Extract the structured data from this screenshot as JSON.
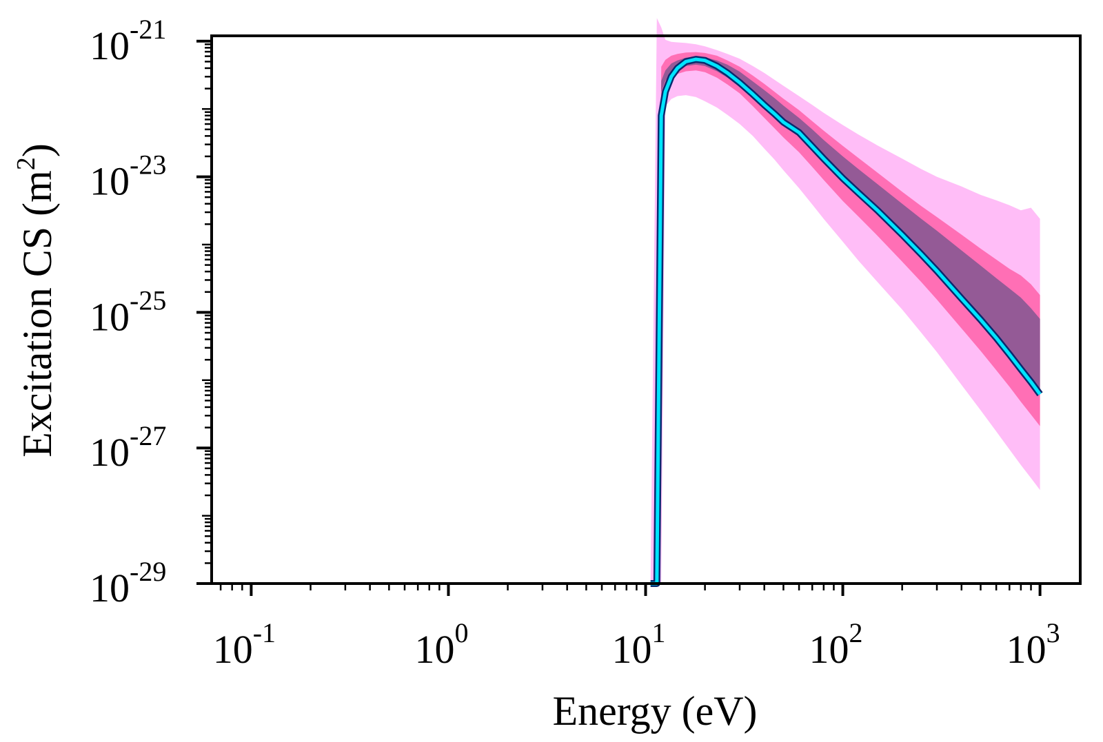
{
  "chart_data": {
    "type": "area",
    "title": "",
    "xlabel": "Energy (eV)",
    "ylabel_main": "Excitation CS (m",
    "ylabel_sup": "2",
    "ylabel_close": ")",
    "xscale": "log",
    "yscale": "log",
    "xlim": [
      0.063,
      1600
    ],
    "ylim": [
      1e-29,
      1.2e-21
    ],
    "grid": false,
    "legend": "none",
    "x_ticks": [
      {
        "value": 0.1,
        "base": "10",
        "exp": "-1"
      },
      {
        "value": 1,
        "base": "10",
        "exp": "0"
      },
      {
        "value": 10,
        "base": "10",
        "exp": "1"
      },
      {
        "value": 100,
        "base": "10",
        "exp": "2"
      },
      {
        "value": 1000,
        "base": "10",
        "exp": "3"
      }
    ],
    "y_ticks": [
      {
        "value": 1e-21,
        "base": "10",
        "exp": "-21"
      },
      {
        "value": 1e-23,
        "base": "10",
        "exp": "-23"
      },
      {
        "value": 1e-25,
        "base": "10",
        "exp": "-25"
      },
      {
        "value": 1e-27,
        "base": "10",
        "exp": "-27"
      },
      {
        "value": 1e-29,
        "base": "10",
        "exp": "-29"
      }
    ],
    "x": [
      10.6,
      11.4,
      12.0,
      12.6,
      13.5,
      14.5,
      16,
      18,
      20,
      23,
      26,
      30,
      35,
      40,
      45,
      50,
      60,
      70,
      80,
      100,
      120,
      150,
      200,
      250,
      300,
      400,
      500,
      600,
      700,
      800,
      900,
      1000
    ],
    "series": [
      {
        "name": "mean",
        "color": "#00e5ff",
        "edge": "#0a2a6e",
        "values": [
          1e-29,
          1e-29,
          8e-23,
          1.8e-22,
          3e-22,
          4e-22,
          5e-22,
          5.4e-22,
          5.2e-22,
          4.3e-22,
          3.4e-22,
          2.45e-22,
          1.65e-22,
          1.15e-22,
          8.5e-23,
          6.4e-23,
          4.5e-23,
          2.8e-23,
          1.85e-23,
          9.5e-24,
          5.8e-24,
          3.2e-24,
          1.4e-24,
          7.2e-25,
          4.1e-25,
          1.6e-25,
          7.8e-26,
          4.2e-26,
          2.4e-26,
          1.45e-26,
          9.4e-27,
          6.2e-27
        ]
      }
    ],
    "bands": [
      {
        "name": "outer band",
        "color": "#ffbdf7",
        "lower": [
          1e-29,
          1e-29,
          1e-29,
          1.1e-22,
          1.4e-22,
          1.55e-22,
          1.6e-22,
          1.5e-22,
          1.3e-22,
          1.05e-22,
          8.2e-23,
          6e-23,
          4e-23,
          2.6e-23,
          1.8e-23,
          1.25e-23,
          6.8e-24,
          3.9e-24,
          2.4e-24,
          1.1e-24,
          5.8e-25,
          2.8e-25,
          1.1e-25,
          5e-26,
          2.6e-26,
          8.5e-27,
          3.6e-27,
          1.75e-27,
          9.5e-28,
          5.6e-28,
          3.6e-28,
          2.4e-28
        ],
        "upper": [
          1e-29,
          2.2e-21,
          1.6e-21,
          1.05e-21,
          9.8e-22,
          9.6e-22,
          9.4e-22,
          9e-22,
          8.4e-22,
          7.4e-22,
          6.5e-22,
          5.5e-22,
          4.3e-22,
          3.4e-22,
          2.7e-22,
          2.2e-22,
          1.55e-22,
          1.15e-22,
          8.8e-23,
          5.8e-23,
          4.2e-23,
          2.9e-23,
          1.85e-23,
          1.3e-23,
          1e-23,
          7.2e-24,
          5.4e-24,
          4.5e-24,
          3.8e-24,
          3.2e-24,
          3.5e-24,
          2.4e-24
        ]
      },
      {
        "name": "middle band",
        "color": "#ff6fb5",
        "lower": [
          1e-29,
          1e-29,
          1.2e-22,
          2.1e-22,
          2.9e-22,
          3.3e-22,
          3.6e-22,
          3.7e-22,
          3.5e-22,
          2.9e-22,
          2.3e-22,
          1.7e-22,
          1.1e-22,
          7.4e-23,
          5.2e-23,
          3.8e-23,
          2.3e-23,
          1.4e-23,
          9e-24,
          4.4e-24,
          2.6e-24,
          1.35e-24,
          5.6e-25,
          2.8e-25,
          1.55e-25,
          5.8e-26,
          2.7e-26,
          1.4e-26,
          8e-27,
          4.8e-27,
          3.1e-27,
          2.1e-27
        ],
        "upper": [
          1e-29,
          1e-29,
          4.2e-22,
          5.3e-22,
          6.1e-22,
          6.5e-22,
          6.8e-22,
          6.9e-22,
          6.7e-22,
          6.1e-22,
          5.2e-22,
          4.2e-22,
          3.1e-22,
          2.35e-22,
          1.8e-22,
          1.42e-22,
          9.6e-23,
          6.6e-23,
          4.8e-23,
          2.85e-23,
          1.9e-23,
          1.15e-23,
          6e-24,
          3.7e-24,
          2.55e-24,
          1.4e-24,
          8.7e-25,
          6e-25,
          4.4e-25,
          3.5e-25,
          2.6e-25,
          1.8e-25
        ]
      },
      {
        "name": "inner band",
        "color": "#945a96",
        "lower": [
          1e-29,
          1e-29,
          1.8e-22,
          2.6e-22,
          3.4e-22,
          3.9e-22,
          4.3e-22,
          4.5e-22,
          4.3e-22,
          3.6e-22,
          2.9e-22,
          2.1e-22,
          1.45e-22,
          1e-22,
          7.4e-23,
          5.6e-23,
          3.9e-23,
          2.45e-23,
          1.62e-23,
          8.6e-24,
          5.2e-24,
          2.9e-24,
          1.28e-24,
          6.7e-25,
          3.8e-25,
          1.55e-25,
          7.8e-26,
          4.3e-26,
          2.5e-26,
          1.55e-26,
          1.05e-26,
          7.2e-27
        ],
        "upper": [
          1e-29,
          1e-29,
          2.6e-22,
          3.7e-22,
          4.7e-22,
          5.2e-22,
          5.7e-22,
          5.9e-22,
          5.8e-22,
          5.2e-22,
          4.5e-22,
          3.55e-22,
          2.55e-22,
          1.9e-22,
          1.45e-22,
          1.12e-22,
          7.4e-23,
          5e-23,
          3.5e-23,
          2e-23,
          1.3e-23,
          7.8e-24,
          4e-24,
          2.4e-24,
          1.6e-24,
          8.2e-25,
          4.9e-25,
          3.2e-25,
          2.25e-25,
          1.65e-25,
          1.15e-25,
          8e-26
        ]
      }
    ]
  }
}
